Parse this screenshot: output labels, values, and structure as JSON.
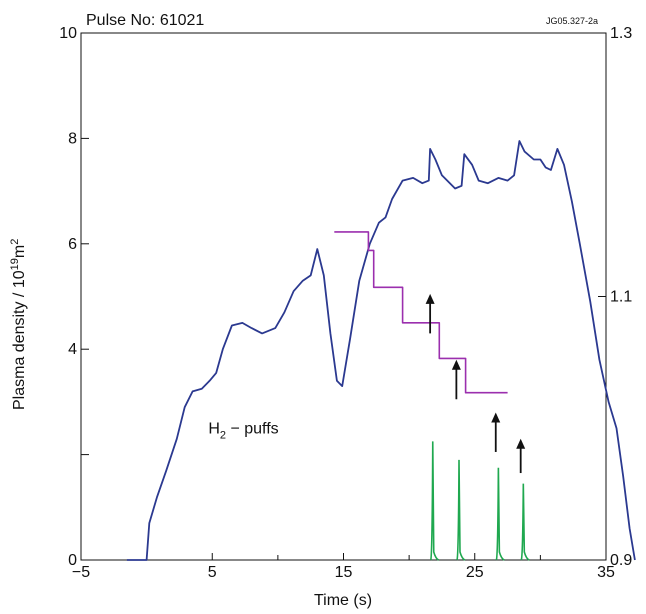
{
  "chart_data": {
    "type": "line",
    "title": "Pulse No: 61021",
    "figure_id": "JG05.327-2a",
    "xlabel": "Time (s)",
    "ylabel_main": "Plasma density / 10",
    "ylabel_sup": "19",
    "ylabel_tail": "m",
    "ylabel_sup2": "2",
    "xlim": [
      -5,
      35
    ],
    "ylim": [
      0,
      10
    ],
    "y2lim": [
      0.9,
      1.3
    ],
    "x_ticks": [
      {
        "v": -5,
        "label": "−5"
      },
      {
        "v": 5,
        "label": "5"
      },
      {
        "v": 15,
        "label": "15"
      },
      {
        "v": 25,
        "label": "25"
      },
      {
        "v": 35,
        "label": "35"
      }
    ],
    "x_minor_ticks": [
      0,
      10,
      20,
      30
    ],
    "y_ticks": [
      {
        "v": 0,
        "label": "0"
      },
      {
        "v": 4,
        "label": "4"
      },
      {
        "v": 6,
        "label": "6"
      },
      {
        "v": 8,
        "label": "8"
      },
      {
        "v": 10,
        "label": "10"
      }
    ],
    "y_minor_ticks": [
      2
    ],
    "y2_ticks": [
      {
        "v": 0.9,
        "label": "0.9"
      },
      {
        "v": 1.1,
        "label": "1.1"
      },
      {
        "v": 1.3,
        "label": "1.3"
      }
    ],
    "annotation": {
      "text_main": "H",
      "text_sub": "2",
      "text_tail": " − puffs",
      "x": 4.7,
      "y": 2.4
    },
    "colors": {
      "density": "#2b3990",
      "step": "#9b2fae",
      "puffs": "#1fa84f",
      "arrow": "#111111"
    },
    "series": [
      {
        "key": "density",
        "color": "#2b3990",
        "points": [
          [
            -1.5,
            0
          ],
          [
            0,
            0
          ],
          [
            0.2,
            0.7
          ],
          [
            0.8,
            1.2
          ],
          [
            1.5,
            1.7
          ],
          [
            2.3,
            2.3
          ],
          [
            2.9,
            2.9
          ],
          [
            3.5,
            3.2
          ],
          [
            4.2,
            3.25
          ],
          [
            4.8,
            3.4
          ],
          [
            5.3,
            3.55
          ],
          [
            5.8,
            4.0
          ],
          [
            6.5,
            4.45
          ],
          [
            7.3,
            4.5
          ],
          [
            8.0,
            4.4
          ],
          [
            8.8,
            4.3
          ],
          [
            9.8,
            4.4
          ],
          [
            10.5,
            4.7
          ],
          [
            11.2,
            5.1
          ],
          [
            11.9,
            5.3
          ],
          [
            12.5,
            5.4
          ],
          [
            13.0,
            5.9
          ],
          [
            13.5,
            5.4
          ],
          [
            14.0,
            4.3
          ],
          [
            14.5,
            3.4
          ],
          [
            14.9,
            3.3
          ],
          [
            15.5,
            4.2
          ],
          [
            16.2,
            5.3
          ],
          [
            17.0,
            6.0
          ],
          [
            17.7,
            6.4
          ],
          [
            18.2,
            6.5
          ],
          [
            18.7,
            6.85
          ],
          [
            19.5,
            7.2
          ],
          [
            20.3,
            7.25
          ],
          [
            21.0,
            7.15
          ],
          [
            21.5,
            7.2
          ],
          [
            21.6,
            7.8
          ],
          [
            22.0,
            7.6
          ],
          [
            22.5,
            7.3
          ],
          [
            23.5,
            7.05
          ],
          [
            24.0,
            7.1
          ],
          [
            24.2,
            7.7
          ],
          [
            24.8,
            7.5
          ],
          [
            25.3,
            7.2
          ],
          [
            26.0,
            7.15
          ],
          [
            26.8,
            7.25
          ],
          [
            27.5,
            7.2
          ],
          [
            28.0,
            7.3
          ],
          [
            28.4,
            7.95
          ],
          [
            28.8,
            7.75
          ],
          [
            29.5,
            7.6
          ],
          [
            30.0,
            7.6
          ],
          [
            30.4,
            7.45
          ],
          [
            30.8,
            7.4
          ],
          [
            31.3,
            7.8
          ],
          [
            31.8,
            7.5
          ],
          [
            32.4,
            6.8
          ],
          [
            33.0,
            6.0
          ],
          [
            33.8,
            4.9
          ],
          [
            34.5,
            3.8
          ],
          [
            35.2,
            3.0
          ],
          [
            35.8,
            2.5
          ],
          [
            36.3,
            1.6
          ],
          [
            36.8,
            0.6
          ],
          [
            37.2,
            0
          ]
        ]
      },
      {
        "key": "step",
        "color": "#9b2fae",
        "points": [
          [
            14.3,
            1.149
          ],
          [
            16.9,
            1.149
          ],
          [
            16.9,
            1.135
          ],
          [
            17.3,
            1.135
          ],
          [
            17.3,
            1.107
          ],
          [
            19.5,
            1.107
          ],
          [
            19.5,
            1.08
          ],
          [
            22.3,
            1.08
          ],
          [
            22.3,
            1.053
          ],
          [
            24.3,
            1.053
          ],
          [
            24.3,
            1.027
          ],
          [
            27.5,
            1.027
          ]
        ]
      }
    ],
    "puffs": [
      {
        "x": 21.8,
        "h": 2.25
      },
      {
        "x": 23.8,
        "h": 1.9
      },
      {
        "x": 26.8,
        "h": 1.75
      },
      {
        "x": 28.7,
        "h": 1.45
      }
    ],
    "arrows": [
      {
        "x": 21.6,
        "y0": 4.3,
        "y1": 5.05
      },
      {
        "x": 23.6,
        "y0": 3.05,
        "y1": 3.8
      },
      {
        "x": 26.6,
        "y0": 2.05,
        "y1": 2.8
      },
      {
        "x": 28.5,
        "y0": 1.65,
        "y1": 2.3
      }
    ]
  }
}
